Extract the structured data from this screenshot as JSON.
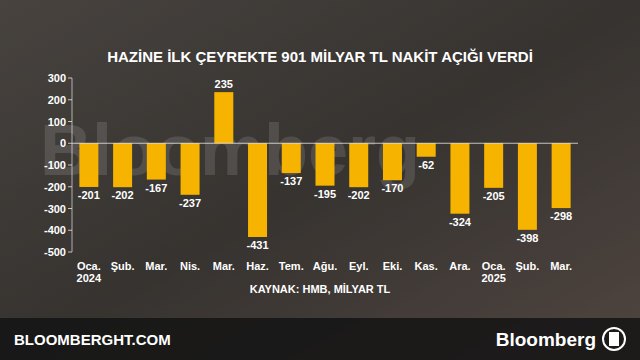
{
  "chart_data": {
    "type": "bar",
    "title": "HAZİNE İLK ÇEYREKTE 901 MİLYAR TL NAKİT AÇIĞI VERDİ",
    "annotations": [
      "KAYNAK: HMB, MİLYAR TL"
    ],
    "categories": [
      "Oca.\n2024",
      "Şub.",
      "Mar.",
      "Nis.",
      "Mar.",
      "Haz.",
      "Tem.",
      "Ağu.",
      "Eyl.",
      "Eki.",
      "Kas.",
      "Ara.",
      "Oca.\n2025",
      "Şub.",
      "Mar."
    ],
    "values": [
      -201,
      -202,
      -167,
      -237,
      235,
      -431,
      -137,
      -195,
      -202,
      -170,
      -62,
      -324,
      -205,
      -398,
      -298
    ],
    "color": "#f6b300",
    "ylim": [
      -500,
      300
    ],
    "yticks": [
      -500,
      -400,
      -300,
      -200,
      -100,
      0,
      100,
      200,
      300
    ],
    "grid": false,
    "data_labels": true
  },
  "footer": {
    "site": "BLOOMBERGHT.COM",
    "brand": "Bloomberg",
    "watermark": "Bloomberg"
  }
}
